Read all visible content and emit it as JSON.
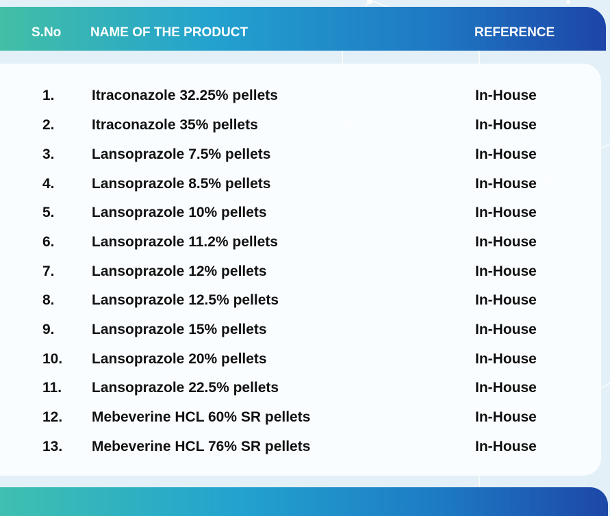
{
  "header": {
    "sno": "S.No",
    "name": "NAME OF THE PRODUCT",
    "reference": "REFERENCE"
  },
  "rows": [
    {
      "sno": "1.",
      "name": "Itraconazole 32.25% pellets",
      "reference": "In-House"
    },
    {
      "sno": "2.",
      "name": "Itraconazole 35% pellets",
      "reference": "In-House"
    },
    {
      "sno": "3.",
      "name": "Lansoprazole 7.5% pellets",
      "reference": "In-House"
    },
    {
      "sno": "4.",
      "name": "Lansoprazole 8.5% pellets",
      "reference": "In-House"
    },
    {
      "sno": "5.",
      "name": "Lansoprazole 10% pellets",
      "reference": "In-House"
    },
    {
      "sno": "6.",
      "name": "Lansoprazole 11.2% pellets",
      "reference": "In-House"
    },
    {
      "sno": "7.",
      "name": "Lansoprazole 12% pellets",
      "reference": "In-House"
    },
    {
      "sno": "8.",
      "name": "Lansoprazole 12.5% pellets",
      "reference": "In-House"
    },
    {
      "sno": "9.",
      "name": "Lansoprazole 15% pellets",
      "reference": "In-House"
    },
    {
      "sno": "10.",
      "name": "Lansoprazole 20% pellets",
      "reference": "In-House"
    },
    {
      "sno": "11.",
      "name": "Lansoprazole 22.5% pellets",
      "reference": "In-House"
    },
    {
      "sno": "12.",
      "name": "Mebeverine HCL 60% SR pellets",
      "reference": "In-House"
    },
    {
      "sno": "13.",
      "name": "Mebeverine HCL 76% SR pellets",
      "reference": "In-House"
    }
  ]
}
